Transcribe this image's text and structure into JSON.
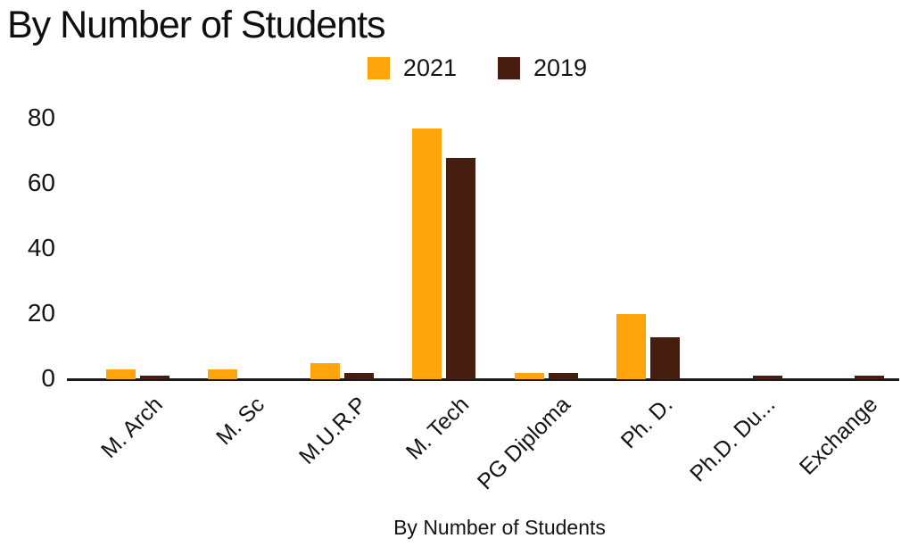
{
  "page": {
    "title": "By Number of Students",
    "x_axis_title": "By Number of Students"
  },
  "chart_data": {
    "type": "bar",
    "title": "By Number of Students",
    "xlabel": "By Number of Students",
    "ylabel": "",
    "categories": [
      "M. Arch",
      "M. Sc",
      "M.U.R.P",
      "M. Tech",
      "PG Diploma",
      "Ph. D.",
      "Ph.D. Du...",
      "Exchange"
    ],
    "series": [
      {
        "name": "2021",
        "color": "#FFA40B",
        "values": [
          3,
          3,
          5,
          77,
          2,
          20,
          0,
          0
        ]
      },
      {
        "name": "2019",
        "color": "#451E0F",
        "values": [
          1,
          0,
          2,
          68,
          2,
          13,
          1,
          1
        ]
      }
    ],
    "y_ticks": [
      0,
      20,
      40,
      60,
      80
    ],
    "ylim": [
      0,
      80
    ],
    "grid": false,
    "legend_position": "top",
    "axis_color": "#1a1a1a",
    "text_color": "#141414"
  }
}
